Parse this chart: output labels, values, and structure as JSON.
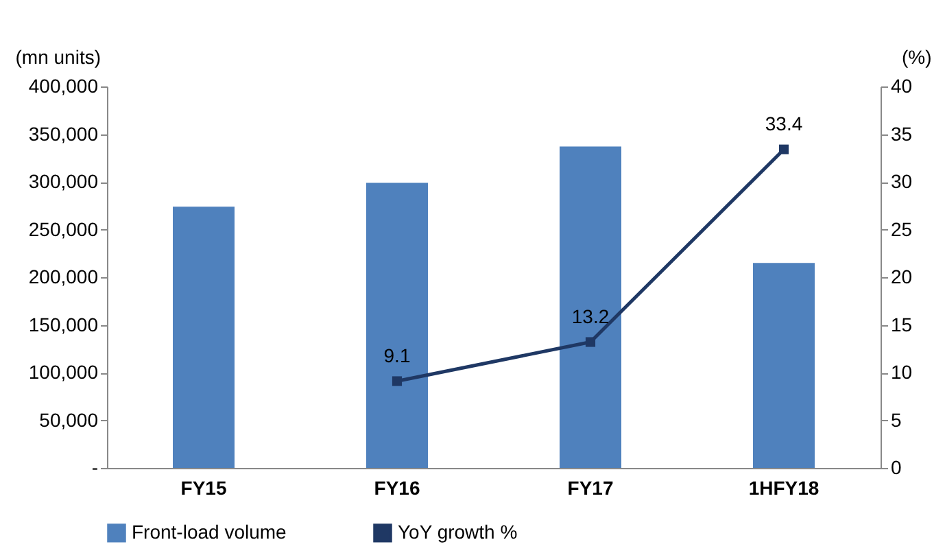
{
  "chart_data": {
    "type": "bar",
    "categories": [
      "FY15",
      "FY16",
      "FY17",
      "1HFY18"
    ],
    "ylabel": "(mn units)",
    "y2label": "(%)",
    "series": [
      {
        "name": "Front-load volume",
        "color": "#4f81bd",
        "values": [
          274000,
          299000,
          337000,
          215000
        ]
      },
      {
        "name": "YoY growth %",
        "type": "line",
        "axis": "y2",
        "color": "#1f3864",
        "marker": "square",
        "values": [
          null,
          9.1,
          13.2,
          33.4
        ],
        "value_labels": [
          null,
          "9.1",
          "13.2",
          "33.4"
        ]
      }
    ],
    "ylim": [
      0,
      400000
    ],
    "yticks": [
      {
        "value": 0,
        "label": "-"
      },
      {
        "value": 50000,
        "label": "50,000"
      },
      {
        "value": 100000,
        "label": "100,000"
      },
      {
        "value": 150000,
        "label": "150,000"
      },
      {
        "value": 200000,
        "label": "200,000"
      },
      {
        "value": 250000,
        "label": "250,000"
      },
      {
        "value": 300000,
        "label": "300,000"
      },
      {
        "value": 350000,
        "label": "350,000"
      },
      {
        "value": 400000,
        "label": "400,000"
      }
    ],
    "y2lim": [
      0,
      40
    ],
    "y2ticks": [
      0,
      5,
      10,
      15,
      20,
      25,
      30,
      35,
      40
    ],
    "grid": false,
    "legend": "bottom"
  }
}
